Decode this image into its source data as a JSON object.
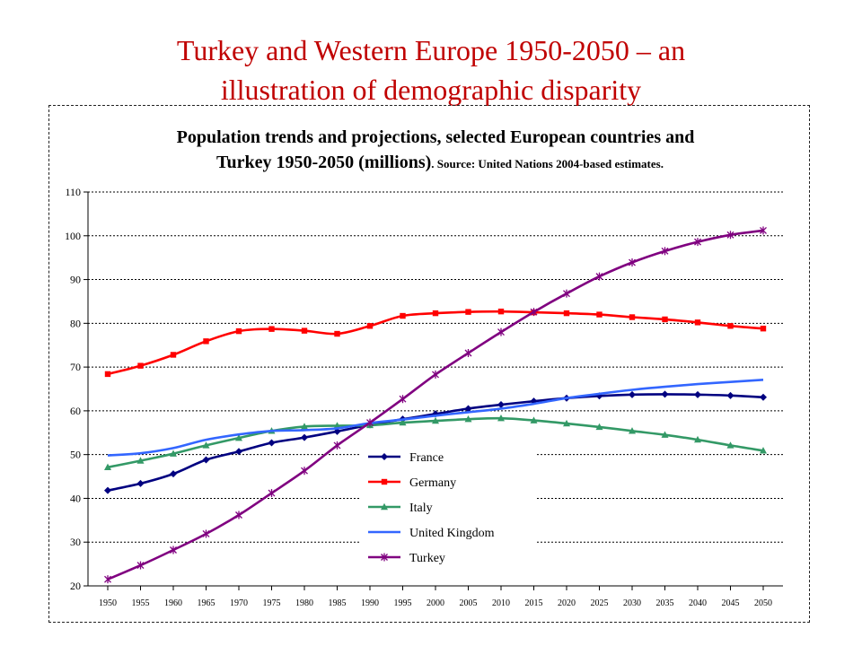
{
  "slide": {
    "title_line1": "Turkey and Western Europe 1950-2050 – an",
    "title_line2": "illustration of demographic disparity"
  },
  "chart_data": {
    "type": "line",
    "title_line1": "Population trends and projections, selected European countries and",
    "title_line2": "Turkey 1950-2050 (millions)",
    "source": ". Source: United Nations 2004-based estimates.",
    "xlabel": "",
    "ylabel": "",
    "ylim": [
      20,
      110
    ],
    "yticks": [
      20,
      30,
      40,
      50,
      60,
      70,
      80,
      90,
      100,
      110
    ],
    "grid": "horizontal dashed",
    "legend_position": "lower center",
    "x": [
      1950,
      1955,
      1960,
      1965,
      1970,
      1975,
      1980,
      1985,
      1990,
      1995,
      2000,
      2005,
      2010,
      2015,
      2020,
      2025,
      2030,
      2035,
      2040,
      2045,
      2050
    ],
    "series": [
      {
        "name": "France",
        "color": "#000080",
        "marker": "diamond",
        "values": [
          41.8,
          43.4,
          45.6,
          48.8,
          50.7,
          52.7,
          53.9,
          55.3,
          56.8,
          58.1,
          59.3,
          60.5,
          61.4,
          62.2,
          62.9,
          63.4,
          63.7,
          63.8,
          63.7,
          63.5,
          63.1
        ]
      },
      {
        "name": "Germany",
        "color": "#ff0000",
        "marker": "square",
        "values": [
          68.4,
          70.3,
          72.8,
          75.9,
          78.2,
          78.7,
          78.3,
          77.6,
          79.4,
          81.7,
          82.3,
          82.6,
          82.7,
          82.5,
          82.3,
          82.0,
          81.4,
          80.9,
          80.2,
          79.4,
          78.8
        ]
      },
      {
        "name": "Italy",
        "color": "#339966",
        "marker": "triangle",
        "values": [
          47.1,
          48.6,
          50.2,
          52.1,
          53.8,
          55.4,
          56.4,
          56.6,
          56.7,
          57.3,
          57.7,
          58.1,
          58.3,
          57.8,
          57.1,
          56.3,
          55.4,
          54.5,
          53.4,
          52.1,
          50.9
        ]
      },
      {
        "name": "United Kingdom",
        "color": "#3366ff",
        "marker": "none",
        "values": [
          49.8,
          50.3,
          51.5,
          53.4,
          54.6,
          55.4,
          55.6,
          56.0,
          57.2,
          58.0,
          58.9,
          59.7,
          60.5,
          61.6,
          62.9,
          63.9,
          64.8,
          65.5,
          66.1,
          66.6,
          67.1
        ]
      },
      {
        "name": "Turkey",
        "color": "#800080",
        "marker": "star",
        "values": [
          21.5,
          24.7,
          28.2,
          31.9,
          36.2,
          41.2,
          46.3,
          52.1,
          57.3,
          62.7,
          68.3,
          73.2,
          78.0,
          82.6,
          86.8,
          90.7,
          93.9,
          96.5,
          98.6,
          100.2,
          101.2
        ]
      }
    ]
  }
}
